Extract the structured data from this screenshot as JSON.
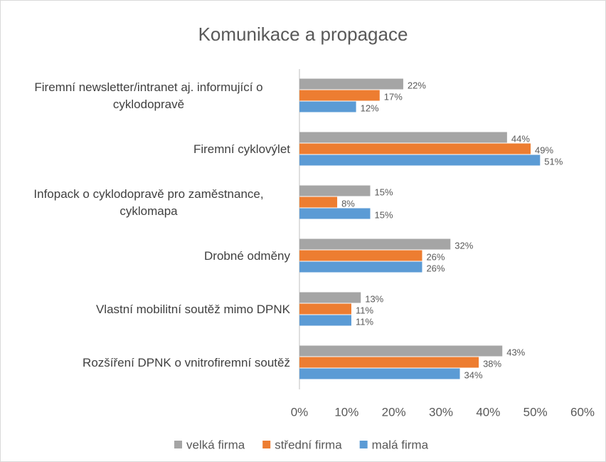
{
  "chart_data": {
    "type": "bar",
    "orientation": "horizontal",
    "title": "Komunikace a propagace",
    "categories": [
      "Firemní newsletter/intranet aj. informující o cyklodopravě",
      "Firemní cyklovýlet",
      "Infopack o cyklodopravě pro zaměstnance, cyklomapa",
      "Drobné odměny",
      "Vlastní mobilitní soutěž mimo DPNK",
      "Rozšíření DPNK o vnitrofiremní soutěž"
    ],
    "series": [
      {
        "name": "velká firma",
        "color": "#a5a5a5",
        "values": [
          22,
          44,
          15,
          32,
          13,
          43
        ],
        "value_labels": [
          "22%",
          "44%",
          "15%",
          "32%",
          "13%",
          "43%"
        ]
      },
      {
        "name": "střední firma",
        "color": "#ed7d31",
        "values": [
          17,
          49,
          8,
          26,
          11,
          38
        ],
        "value_labels": [
          "17%",
          "49%",
          "8%",
          "26%",
          "11%",
          "38%"
        ]
      },
      {
        "name": "malá firma",
        "color": "#5b9bd5",
        "values": [
          12,
          51,
          15,
          26,
          11,
          34
        ],
        "value_labels": [
          "12%",
          "51%",
          "15%",
          "26%",
          "11%",
          "34%"
        ]
      }
    ],
    "xlim": [
      0,
      60
    ],
    "xticks": [
      {
        "value": 0,
        "label": "0%"
      },
      {
        "value": 10,
        "label": "10%"
      },
      {
        "value": 20,
        "label": "20%"
      },
      {
        "value": 30,
        "label": "30%"
      },
      {
        "value": 40,
        "label": "40%"
      },
      {
        "value": 50,
        "label": "50%"
      },
      {
        "value": 60,
        "label": "60%"
      }
    ],
    "grid": false,
    "legend": "bottom"
  }
}
